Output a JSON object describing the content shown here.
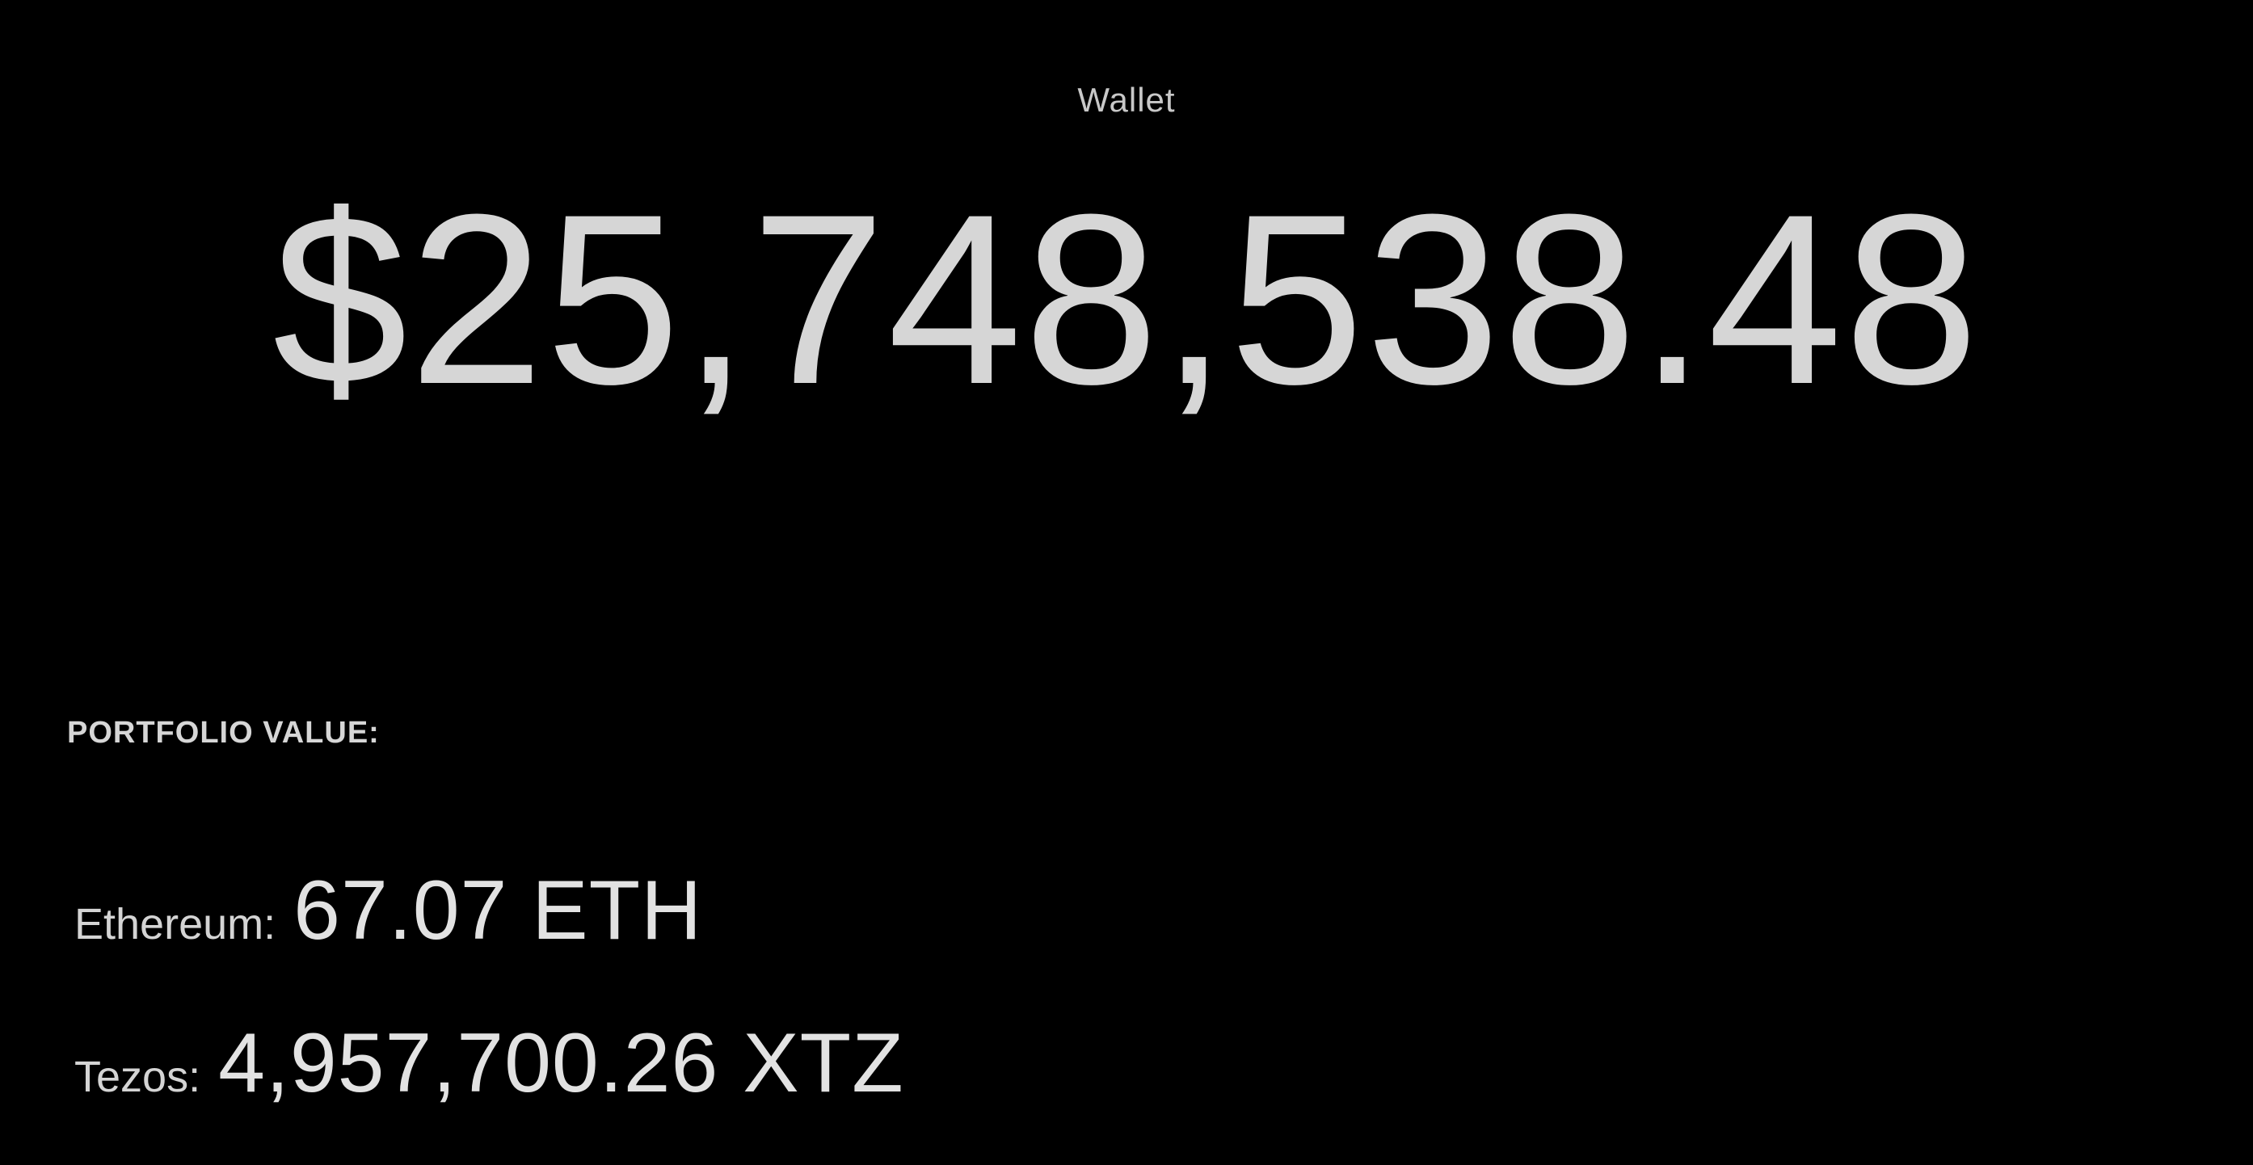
{
  "header": {
    "title": "Wallet"
  },
  "summary": {
    "total_value": "$25,748,538.48",
    "portfolio_label": "PORTFOLIO VALUE:"
  },
  "holdings": [
    {
      "name": "Ethereum:",
      "amount": "67.07 ETH"
    },
    {
      "name": "Tezos:",
      "amount": "4,957,700.26 XTZ"
    }
  ],
  "colors": {
    "background": "#000000",
    "text": "#d6d6d6"
  }
}
